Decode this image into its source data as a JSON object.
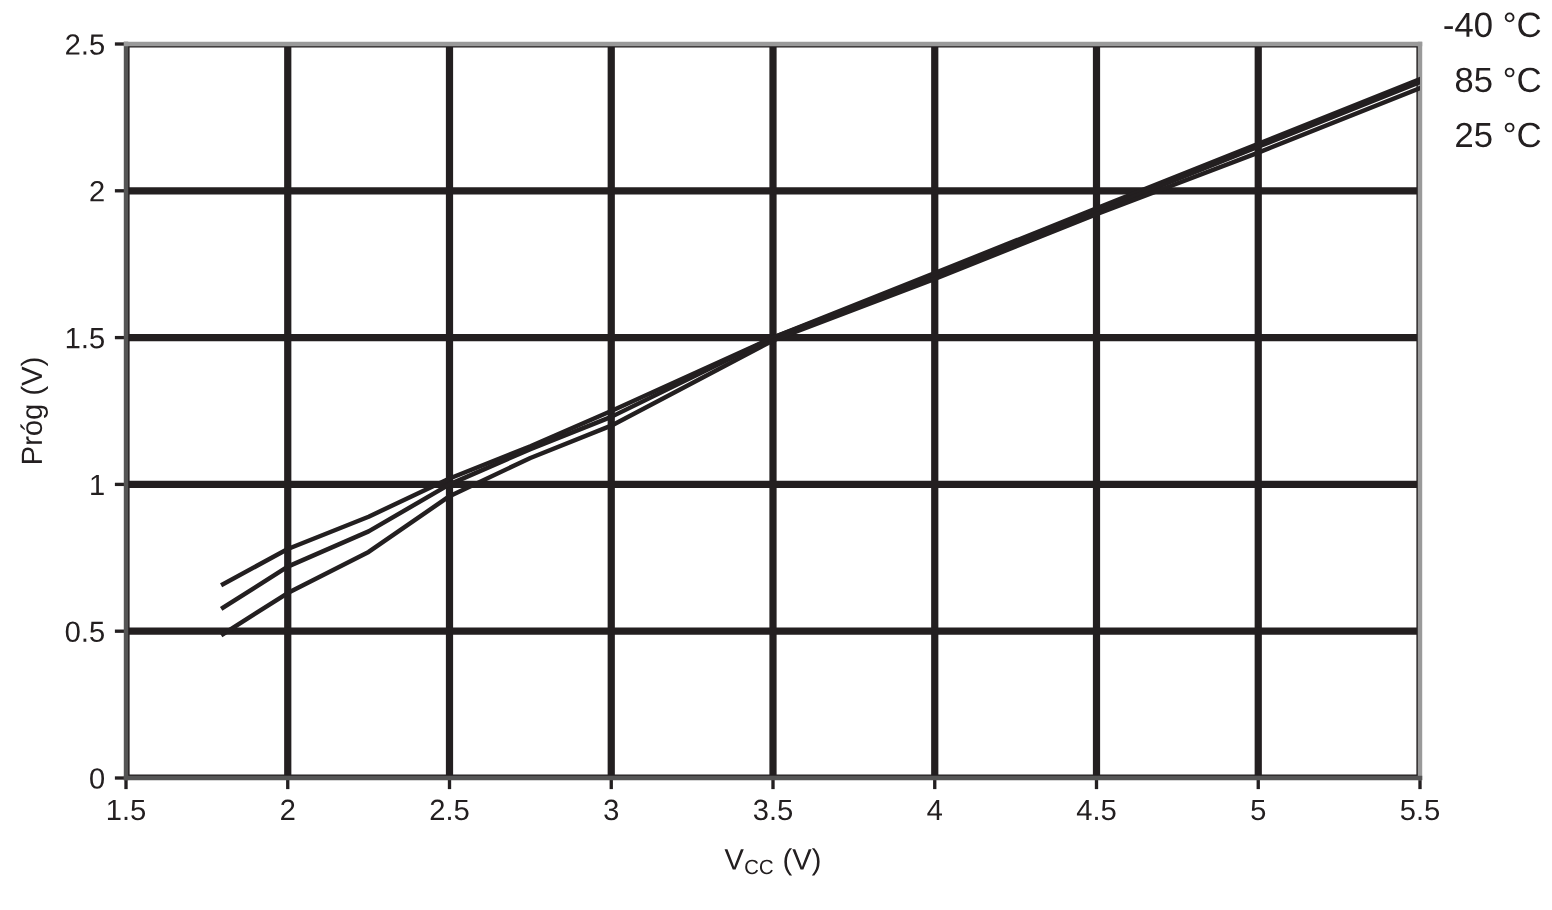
{
  "chart_data": {
    "type": "line",
    "xlabel": "V$_{CC}$ (V)",
    "ylabel": "Próg (V)",
    "series": [
      {
        "name": "-40 °C",
        "color": "#231f20",
        "x": [
          1.8,
          2.0,
          2.25,
          2.5,
          2.75,
          3.0,
          3.5,
          4.0,
          4.5,
          5.0,
          5.5
        ],
        "values": [
          0.66,
          0.78,
          0.89,
          1.02,
          1.13,
          1.25,
          1.5,
          1.72,
          1.94,
          2.16,
          2.38
        ]
      },
      {
        "name": "85 °C",
        "color": "#231f20",
        "x": [
          1.8,
          2.0,
          2.25,
          2.5,
          2.75,
          3.0,
          3.5,
          4.0,
          4.5,
          5.0,
          5.5
        ],
        "values": [
          0.58,
          0.72,
          0.84,
          1.0,
          1.12,
          1.23,
          1.5,
          1.71,
          1.93,
          2.15,
          2.37
        ]
      },
      {
        "name": "25 °C",
        "color": "#231f20",
        "x": [
          1.8,
          2.0,
          2.25,
          2.5,
          2.75,
          3.0,
          3.5,
          4.0,
          4.5,
          5.0,
          5.5
        ],
        "values": [
          0.49,
          0.63,
          0.77,
          0.96,
          1.09,
          1.2,
          1.49,
          1.7,
          1.92,
          2.13,
          2.35
        ]
      }
    ],
    "xlim": [
      1.5,
      5.5
    ],
    "xticks": [
      1.5,
      2,
      2.5,
      3,
      3.5,
      4,
      4.5,
      5,
      5.5
    ],
    "ylim": [
      0,
      2.5
    ],
    "yticks": [
      0,
      0.5,
      1,
      1.5,
      2,
      2.5
    ],
    "grid": true,
    "marker": "none",
    "line_style": "solid",
    "legend": false
  }
}
